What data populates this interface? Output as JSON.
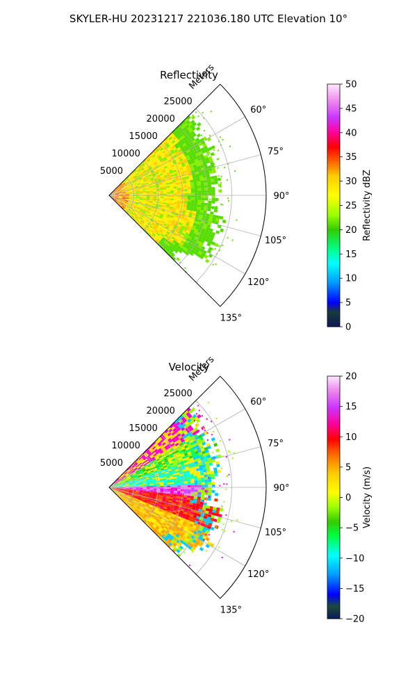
{
  "figure": {
    "title": "SKYLER-HU  20231217  221036.180 UTC Elevation 10°"
  },
  "chart_data": [
    {
      "type": "heatmap",
      "projection": "polar-sector",
      "title": "Reflectivity",
      "range_label": "Meters",
      "range_ticks": [
        5000,
        10000,
        15000,
        20000,
        25000
      ],
      "range_max": 32000,
      "azimuth_ticks": [
        "60°",
        "75°",
        "90°",
        "105°",
        "120°",
        "135°"
      ],
      "azimuth_range_deg": [
        45,
        135
      ],
      "colorbar": {
        "label": "Reflectivity dBZ",
        "range": [
          0,
          50
        ],
        "ticks": [
          0,
          5,
          10,
          15,
          20,
          25,
          30,
          35,
          40,
          45,
          50
        ]
      }
    },
    {
      "type": "heatmap",
      "projection": "polar-sector",
      "title": "Velocity",
      "range_label": "Meters",
      "range_ticks": [
        5000,
        10000,
        15000,
        20000,
        25000
      ],
      "range_max": 32000,
      "azimuth_ticks": [
        "60°",
        "75°",
        "90°",
        "105°",
        "120°",
        "135°"
      ],
      "azimuth_range_deg": [
        45,
        135
      ],
      "colorbar": {
        "label": "Velocity (m/s)",
        "range": [
          -20,
          20
        ],
        "ticks": [
          -20,
          -15,
          -10,
          -5,
          0,
          5,
          10,
          15,
          20
        ]
      }
    }
  ]
}
